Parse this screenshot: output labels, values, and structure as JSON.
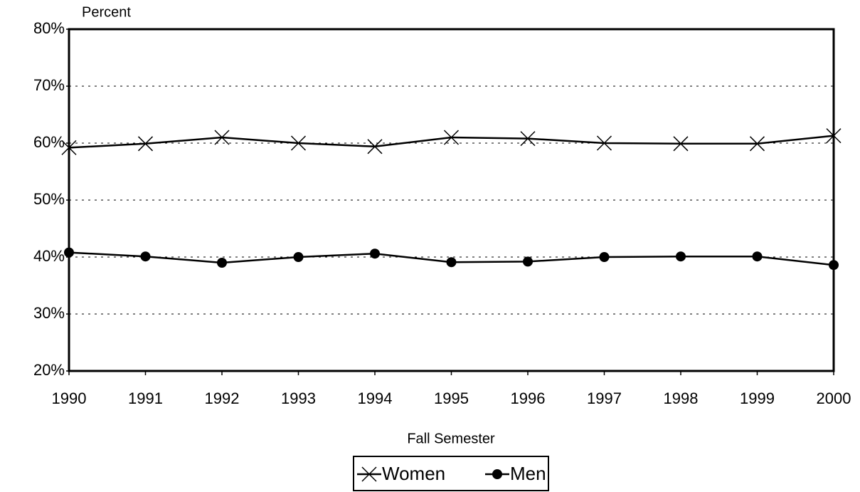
{
  "chart_data": {
    "type": "line",
    "ylabel": "Percent",
    "xlabel": "Fall Semester",
    "x": [
      1990,
      1991,
      1992,
      1993,
      1994,
      1995,
      1996,
      1997,
      1998,
      1999,
      2000
    ],
    "xlim": [
      1990,
      2000
    ],
    "xticks": [
      1990,
      1991,
      1992,
      1993,
      1994,
      1995,
      1996,
      1997,
      1998,
      1999,
      2000
    ],
    "ylim": [
      20,
      80
    ],
    "yticks": [
      {
        "value": 20,
        "label": "20%"
      },
      {
        "value": 30,
        "label": "30%"
      },
      {
        "value": 40,
        "label": "40%"
      },
      {
        "value": 50,
        "label": "50%"
      },
      {
        "value": 60,
        "label": "60%"
      },
      {
        "value": 70,
        "label": "70%"
      },
      {
        "value": 80,
        "label": "80%"
      }
    ],
    "grid": true,
    "legend": "bottom",
    "series": [
      {
        "name": "Women",
        "color": "#000000",
        "marker": "x",
        "values": [
          59.2,
          59.9,
          61.0,
          60.0,
          59.4,
          61.0,
          60.8,
          60.0,
          59.9,
          59.9,
          61.3
        ]
      },
      {
        "name": "Men",
        "color": "#000000",
        "marker": "circle",
        "values": [
          40.8,
          40.1,
          39.0,
          40.0,
          40.6,
          39.1,
          39.2,
          40.0,
          40.1,
          40.1,
          38.6
        ]
      }
    ]
  }
}
